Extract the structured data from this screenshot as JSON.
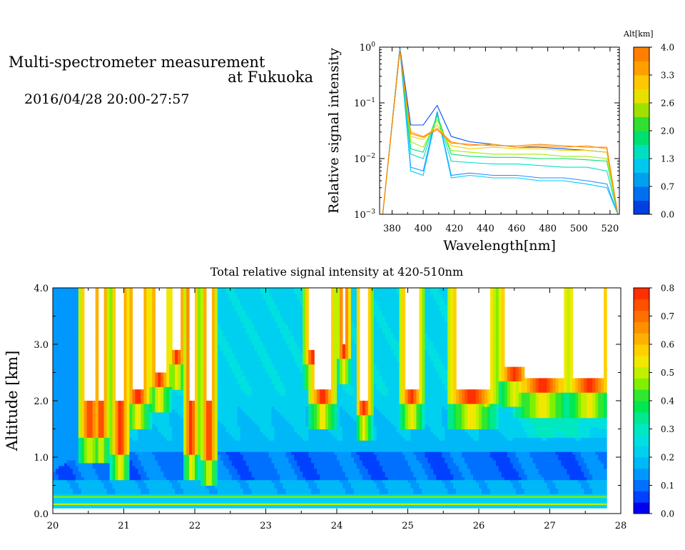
{
  "header": {
    "title_line1": "Multi-spectrometer measurement",
    "title_line2": "at Fukuoka",
    "date_range": "2016/04/28 20:00-27:57"
  },
  "chart_data": [
    {
      "type": "line",
      "xlabel": "Wavelength[nm]",
      "ylabel": "Relative signal intensity",
      "xlim": [
        372,
        526
      ],
      "ylim": [
        0.001,
        1
      ],
      "yscale": "log",
      "x_ticks": [
        "380",
        "400",
        "420",
        "440",
        "460",
        "480",
        "500",
        "520"
      ],
      "y_ticks": [
        {
          "base": "10",
          "exp": "0",
          "value": 1
        },
        {
          "base": "10",
          "exp": "−1",
          "value": 0.1
        },
        {
          "base": "10",
          "exp": "−2",
          "value": 0.01
        },
        {
          "base": "10",
          "exp": "−3",
          "value": 0.001
        }
      ],
      "x": [
        374,
        385,
        392,
        400,
        409,
        418,
        430,
        445,
        460,
        475,
        490,
        505,
        518,
        525
      ],
      "series": [
        {
          "color": "#0050ff",
          "values": [
            0.001,
            1,
            0.04,
            0.04,
            0.09,
            0.025,
            0.02,
            0.018,
            0.016,
            0.016,
            0.015,
            0.014,
            0.013,
            0.001
          ]
        },
        {
          "color": "#1e90ff",
          "values": [
            0.001,
            0.95,
            0.007,
            0.006,
            0.07,
            0.005,
            0.0055,
            0.005,
            0.005,
            0.0045,
            0.0045,
            0.004,
            0.0035,
            0.001
          ]
        },
        {
          "color": "#00c8ff",
          "values": [
            0.001,
            0.93,
            0.006,
            0.005,
            0.065,
            0.0045,
            0.005,
            0.0045,
            0.0045,
            0.004,
            0.004,
            0.0035,
            0.003,
            0.001
          ]
        },
        {
          "color": "#00e0d0",
          "values": [
            0.001,
            0.92,
            0.012,
            0.01,
            0.06,
            0.009,
            0.0085,
            0.008,
            0.008,
            0.0075,
            0.007,
            0.007,
            0.006,
            0.001
          ]
        },
        {
          "color": "#00e070",
          "values": [
            0.001,
            0.9,
            0.015,
            0.013,
            0.06,
            0.012,
            0.011,
            0.0105,
            0.0105,
            0.01,
            0.01,
            0.0095,
            0.009,
            0.001
          ]
        },
        {
          "color": "#a0f000",
          "values": [
            0.001,
            0.9,
            0.02,
            0.016,
            0.05,
            0.014,
            0.013,
            0.012,
            0.012,
            0.012,
            0.011,
            0.011,
            0.01,
            0.001
          ]
        },
        {
          "color": "#f0d000",
          "values": [
            0.001,
            0.88,
            0.025,
            0.022,
            0.04,
            0.017,
            0.015,
            0.016,
            0.015,
            0.015,
            0.014,
            0.014,
            0.013,
            0.001
          ]
        },
        {
          "color": "#ffa000",
          "values": [
            0.001,
            0.87,
            0.03,
            0.025,
            0.035,
            0.02,
            0.017,
            0.018,
            0.016,
            0.017,
            0.016,
            0.017,
            0.015,
            0.001
          ]
        },
        {
          "color": "#ff8000",
          "values": [
            0.001,
            0.86,
            0.028,
            0.024,
            0.033,
            0.019,
            0.018,
            0.017,
            0.017,
            0.018,
            0.017,
            0.016,
            0.016,
            0.001
          ]
        }
      ],
      "colorbar": {
        "title": "Alt[km]",
        "min": 0.0,
        "max": 4.0,
        "tick_labels": [
          "0.0",
          "0.7",
          "1.3",
          "2.0",
          "2.6",
          "3.3",
          "4.0"
        ],
        "colors": [
          "#0040e0",
          "#0070f0",
          "#00a0f0",
          "#00c8f0",
          "#00e0c0",
          "#00e070",
          "#30e030",
          "#a0e000",
          "#e8e000",
          "#ffc800",
          "#ffa000",
          "#ff8000"
        ]
      }
    },
    {
      "type": "heatmap",
      "title": "Total relative signal intensity at 420-510nm",
      "ylabel": "Altitude [km]",
      "xlim": [
        20,
        28
      ],
      "ylim": [
        0.0,
        4.0
      ],
      "x_ticks": [
        "20",
        "21",
        "22",
        "23",
        "24",
        "25",
        "26",
        "27",
        "28"
      ],
      "y_ticks": [
        "0.0",
        "1.0",
        "2.0",
        "3.0",
        "4.0"
      ],
      "x_coverage": [
        20,
        27.8
      ],
      "cloud_columns": [
        {
          "x": 20.52,
          "half_width": 0.1,
          "base_km": 1.5
        },
        {
          "x": 20.68,
          "half_width": 0.05,
          "base_km": 1.5
        },
        {
          "x": 20.95,
          "half_width": 0.08,
          "base_km": 1.2
        },
        {
          "x": 21.2,
          "half_width": 0.12,
          "base_km": 2.1
        },
        {
          "x": 21.5,
          "half_width": 0.1,
          "base_km": 2.4
        },
        {
          "x": 21.75,
          "half_width": 0.07,
          "base_km": 2.8
        },
        {
          "x": 21.95,
          "half_width": 0.05,
          "base_km": 1.2
        },
        {
          "x": 22.2,
          "half_width": 0.05,
          "base_km": 1.1
        },
        {
          "x": 23.65,
          "half_width": 0.06,
          "base_km": 2.8
        },
        {
          "x": 23.8,
          "half_width": 0.15,
          "base_km": 2.1
        },
        {
          "x": 24.1,
          "half_width": 0.04,
          "base_km": 2.9
        },
        {
          "x": 24.38,
          "half_width": 0.06,
          "base_km": 1.9
        },
        {
          "x": 25.05,
          "half_width": 0.12,
          "base_km": 2.1
        },
        {
          "x": 25.9,
          "half_width": 0.3,
          "base_km": 2.1
        },
        {
          "x": 26.1,
          "half_width": 0.05,
          "base_km": 2.5
        },
        {
          "x": 26.5,
          "half_width": 0.2,
          "base_km": 2.5
        },
        {
          "x": 26.9,
          "half_width": 0.35,
          "base_km": 2.3
        },
        {
          "x": 27.55,
          "half_width": 0.28,
          "base_km": 2.3
        }
      ],
      "colorbar": {
        "min": 0.0,
        "max": 0.8,
        "tick_labels": [
          "0.0",
          "0.1",
          "0.2",
          "0.3",
          "0.4",
          "0.5",
          "0.6",
          "0.7",
          "0.8"
        ],
        "colors": [
          "#0000f0",
          "#0040ff",
          "#0070ff",
          "#0098ff",
          "#00b8f8",
          "#00d0f0",
          "#00e0e0",
          "#00e8c0",
          "#00e890",
          "#00e850",
          "#30e830",
          "#80f000",
          "#c0f000",
          "#f0e800",
          "#ffd000",
          "#ffb000",
          "#ff9000",
          "#ff7000",
          "#ff5000",
          "#ff3000"
        ]
      }
    }
  ]
}
